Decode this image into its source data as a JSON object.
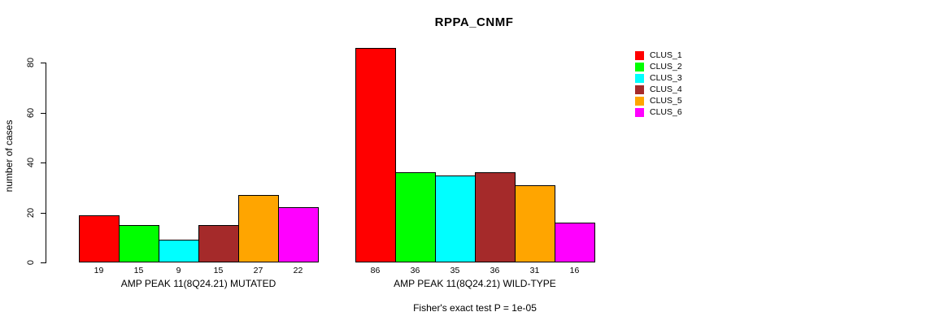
{
  "chart_data": {
    "type": "bar",
    "title": "RPPA_CNMF",
    "ylabel": "number of cases",
    "xlabel": "",
    "ylim": [
      0,
      80
    ],
    "yticks": [
      0,
      20,
      40,
      60,
      80
    ],
    "grid": false,
    "legend_position": "right",
    "background": "#FFFFFF",
    "text_color": "#000000",
    "clusters": [
      {
        "name": "CLUS_1",
        "color": "#FF0000"
      },
      {
        "name": "CLUS_2",
        "color": "#00FF00"
      },
      {
        "name": "CLUS_3",
        "color": "#00FFFF"
      },
      {
        "name": "CLUS_4",
        "color": "#A52A2A"
      },
      {
        "name": "CLUS_5",
        "color": "#FFA500"
      },
      {
        "name": "CLUS_6",
        "color": "#FF00FF"
      }
    ],
    "groups": [
      {
        "label": "AMP PEAK 11(8Q24.21) MUTATED",
        "values": [
          19,
          15,
          9,
          15,
          27,
          22
        ]
      },
      {
        "label": "AMP PEAK 11(8Q24.21) WILD-TYPE",
        "values": [
          86,
          36,
          35,
          36,
          31,
          16
        ]
      }
    ],
    "annotation": "Fisher's exact test P = 1e-05"
  }
}
